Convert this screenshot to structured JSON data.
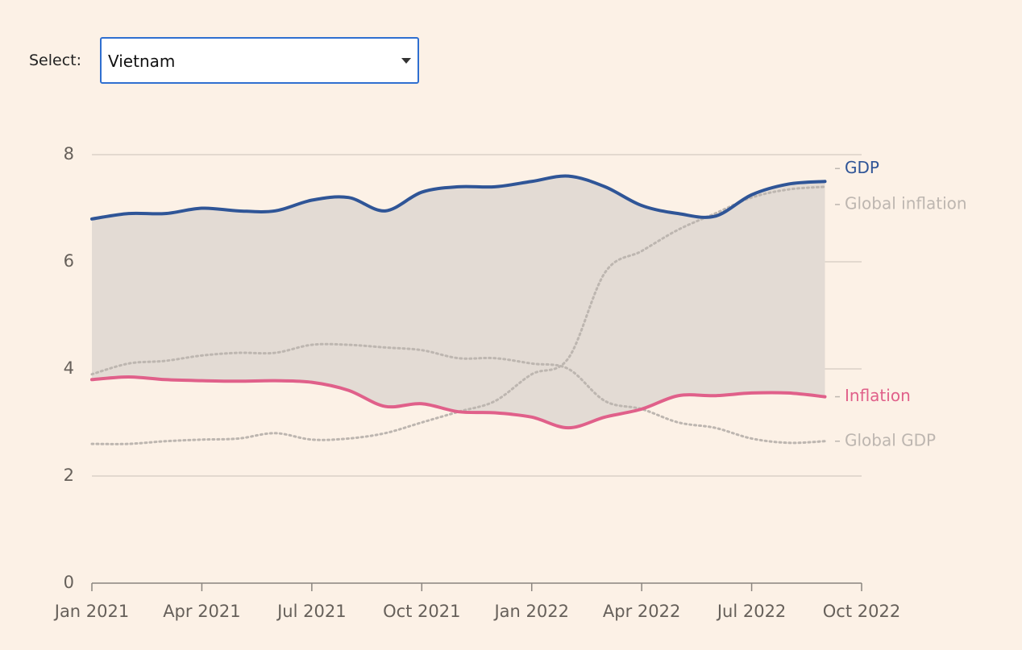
{
  "control": {
    "label": "Select:",
    "value": "Vietnam"
  },
  "chart_data": {
    "type": "line",
    "x": [
      "2021-01",
      "2021-02",
      "2021-03",
      "2021-04",
      "2021-05",
      "2021-06",
      "2021-07",
      "2021-08",
      "2021-09",
      "2021-10",
      "2021-11",
      "2021-12",
      "2022-01",
      "2022-02",
      "2022-03",
      "2022-04",
      "2022-05",
      "2022-06",
      "2022-07",
      "2022-08",
      "2022-09"
    ],
    "series": [
      {
        "name": "GDP",
        "color": "#2f5597",
        "style": "solid",
        "values": [
          6.8,
          6.9,
          6.9,
          7.0,
          6.95,
          6.95,
          7.15,
          7.2,
          6.95,
          7.3,
          7.4,
          7.4,
          7.5,
          7.6,
          7.4,
          7.05,
          6.9,
          6.85,
          7.25,
          7.45,
          7.5
        ]
      },
      {
        "name": "Global inflation",
        "color": "#bdb6b0",
        "style": "dotted",
        "values": [
          2.6,
          2.6,
          2.65,
          2.68,
          2.7,
          2.8,
          2.68,
          2.7,
          2.8,
          3.0,
          3.2,
          3.4,
          3.9,
          4.2,
          5.8,
          6.2,
          6.6,
          6.9,
          7.2,
          7.35,
          7.4
        ]
      },
      {
        "name": "Inflation",
        "color": "#e0608a",
        "style": "solid",
        "values": [
          3.8,
          3.85,
          3.8,
          3.78,
          3.77,
          3.78,
          3.75,
          3.6,
          3.3,
          3.35,
          3.2,
          3.18,
          3.1,
          2.9,
          3.1,
          3.25,
          3.5,
          3.5,
          3.55,
          3.55,
          3.48
        ]
      },
      {
        "name": "Global GDP",
        "color": "#bdb6b0",
        "style": "dotted",
        "values": [
          3.9,
          4.1,
          4.15,
          4.25,
          4.3,
          4.3,
          4.45,
          4.45,
          4.4,
          4.35,
          4.2,
          4.2,
          4.1,
          4.0,
          3.4,
          3.25,
          3.0,
          2.9,
          2.7,
          2.62,
          2.65
        ]
      }
    ],
    "band_between": [
      "GDP",
      "Inflation"
    ],
    "xlim": [
      "2021-01",
      "2022-10"
    ],
    "xticks": [
      {
        "value": "2021-01",
        "label": "Jan 2021"
      },
      {
        "value": "2021-04",
        "label": "Apr 2021"
      },
      {
        "value": "2021-07",
        "label": "Jul 2021"
      },
      {
        "value": "2021-10",
        "label": "Oct 2021"
      },
      {
        "value": "2022-01",
        "label": "Jan 2022"
      },
      {
        "value": "2022-04",
        "label": "Apr 2022"
      },
      {
        "value": "2022-07",
        "label": "Jul 2022"
      },
      {
        "value": "2022-10",
        "label": "Oct 2022"
      }
    ],
    "ylim": [
      0,
      8
    ],
    "yticks": [
      0,
      2,
      4,
      6,
      8
    ],
    "grid": true
  }
}
